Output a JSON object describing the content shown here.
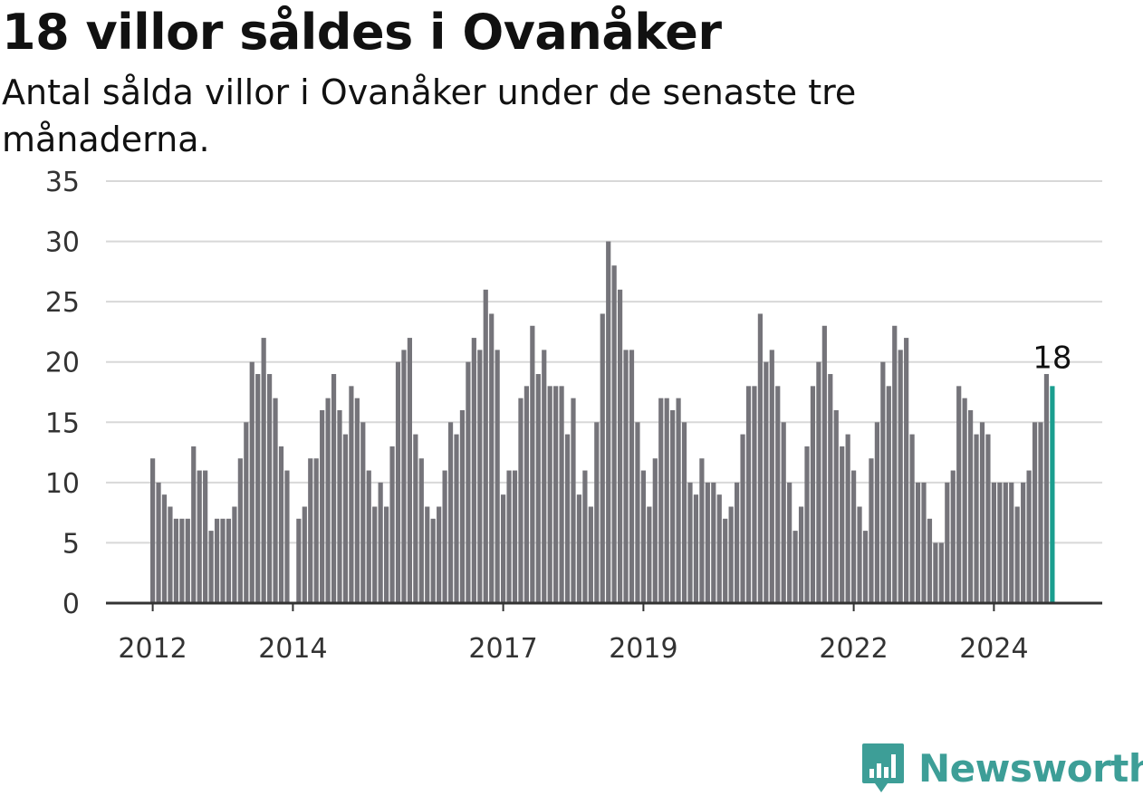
{
  "header": {
    "title": "18 villor såldes i Ovanåker",
    "subtitle": "Antal sålda villor i Ovanåker under de senaste tre månaderna."
  },
  "logo": {
    "text": "Newsworthy",
    "icon": "bar-chart-speech-bubble-icon",
    "color": "#3d9e97"
  },
  "colors": {
    "bar": "#75747a",
    "highlight": "#1a9e8f",
    "grid": "#d8d8d8",
    "axis": "#333333"
  },
  "chart_data": {
    "type": "bar",
    "title": "18 villor såldes i Ovanåker",
    "subtitle": "Antal sålda villor i Ovanåker under de senaste tre månaderna.",
    "xlabel": "",
    "ylabel": "",
    "ylim": [
      0,
      35
    ],
    "yticks": [
      0,
      5,
      10,
      15,
      20,
      25,
      30,
      35
    ],
    "grid": true,
    "x_tick_labels": [
      {
        "label": "2012",
        "index": 0
      },
      {
        "label": "2014",
        "index": 24
      },
      {
        "label": "2017",
        "index": 60
      },
      {
        "label": "2019",
        "index": 84
      },
      {
        "label": "2022",
        "index": 120
      },
      {
        "label": "2024",
        "index": 144
      }
    ],
    "start": "2012-01",
    "frequency": "monthly",
    "values": [
      12,
      10,
      9,
      8,
      7,
      7,
      7,
      13,
      11,
      11,
      6,
      7,
      7,
      7,
      8,
      12,
      15,
      20,
      19,
      22,
      19,
      17,
      13,
      11,
      0,
      7,
      8,
      12,
      12,
      16,
      17,
      19,
      16,
      14,
      18,
      17,
      15,
      11,
      8,
      10,
      8,
      13,
      20,
      21,
      22,
      14,
      12,
      8,
      7,
      8,
      11,
      15,
      14,
      16,
      20,
      22,
      21,
      26,
      24,
      21,
      9,
      11,
      11,
      17,
      18,
      23,
      19,
      21,
      18,
      18,
      18,
      14,
      17,
      9,
      11,
      8,
      15,
      24,
      30,
      28,
      26,
      21,
      21,
      15,
      11,
      8,
      12,
      17,
      17,
      16,
      17,
      15,
      10,
      9,
      12,
      10,
      10,
      9,
      7,
      8,
      10,
      14,
      18,
      18,
      24,
      20,
      21,
      18,
      15,
      10,
      6,
      8,
      13,
      18,
      20,
      23,
      19,
      16,
      13,
      14,
      11,
      8,
      6,
      12,
      15,
      20,
      18,
      23,
      21,
      22,
      14,
      10,
      10,
      7,
      5,
      5,
      10,
      11,
      18,
      17,
      16,
      14,
      15,
      14,
      10,
      10,
      10,
      10,
      8,
      10,
      11,
      15,
      15,
      19,
      18
    ],
    "highlight_last": true,
    "annotation": {
      "text": "18",
      "target": "last"
    }
  }
}
